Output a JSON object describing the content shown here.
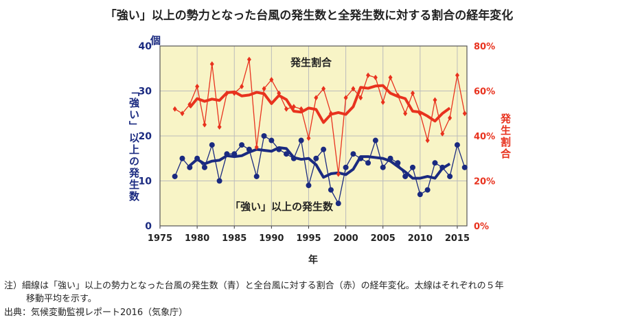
{
  "chart_data": {
    "type": "line",
    "title": "「強い」以上の勢力となった台風の発生数と全発生数に対する割合の経年変化",
    "xlabel": "年",
    "ylabel_left": "「強い」以上の発生数",
    "ylabel_left_unit": "個",
    "ylabel_right": "発生割合",
    "xlim": [
      1975,
      2016.3
    ],
    "ylim_left": [
      0,
      40
    ],
    "ylim_right": [
      0,
      80
    ],
    "x_ticks": [
      1975,
      1980,
      1985,
      1990,
      1995,
      2000,
      2005,
      2010,
      2015
    ],
    "y_ticks_left": [
      "0",
      "10",
      "20",
      "30",
      "40"
    ],
    "y_ticks_right": [
      "0%",
      "20%",
      "40%",
      "60%",
      "80%"
    ],
    "grid": true,
    "annotations": {
      "ratio": "発生割合",
      "count": "「強い」以上の発生数"
    },
    "years": [
      1977,
      1978,
      1979,
      1980,
      1981,
      1982,
      1983,
      1984,
      1985,
      1986,
      1987,
      1988,
      1989,
      1990,
      1991,
      1992,
      1993,
      1994,
      1995,
      1996,
      1997,
      1998,
      1999,
      2000,
      2001,
      2002,
      2003,
      2004,
      2005,
      2006,
      2007,
      2008,
      2009,
      2010,
      2011,
      2012,
      2013,
      2014,
      2015,
      2016
    ],
    "series": [
      {
        "name": "「強い」以上の発生数",
        "axis": "left",
        "color": "#1a2a80",
        "values": [
          11,
          15,
          13,
          15,
          13,
          18,
          10,
          16,
          16,
          18,
          17,
          11,
          20,
          19,
          17,
          16,
          15,
          19,
          9,
          15,
          17,
          8,
          5,
          13,
          16,
          15,
          14,
          19,
          13,
          15,
          14,
          11,
          13,
          7,
          8,
          14,
          13,
          11,
          18,
          13
        ]
      },
      {
        "name": "発生割合",
        "axis": "right",
        "color": "#e8321e",
        "values": [
          52,
          50,
          54,
          62,
          45,
          72,
          44,
          59,
          59,
          62,
          74,
          35,
          61,
          65,
          59,
          52,
          53,
          52,
          39,
          57,
          61,
          50,
          23,
          57,
          61,
          57,
          67,
          66,
          55,
          66,
          58,
          50,
          59,
          50,
          38,
          56,
          41,
          48,
          67,
          50
        ]
      }
    ],
    "moving_average_window": 5
  },
  "notes": {
    "line1": "注）細線は「強い」以上の勢力となった台風の発生数（青）と全台風に対する割合（赤）の経年変化。太線はそれぞれの５年",
    "line2": "移動平均を示す。",
    "source": "出典：気候変動監視レポート2016（気象庁）"
  }
}
